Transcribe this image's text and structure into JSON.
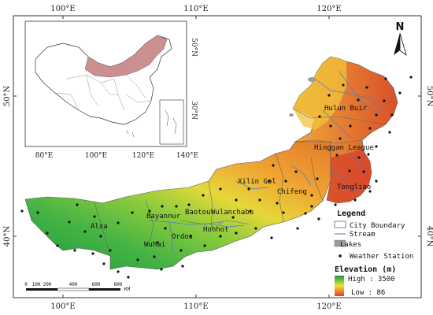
{
  "main_map": {
    "top_ticks": [
      "100°E",
      "110°E",
      "120°E"
    ],
    "bottom_ticks": [
      "100°E",
      "110°E",
      "120°E"
    ],
    "left_ticks": [
      "50°N",
      "40°N"
    ],
    "right_ticks": [
      "50°N",
      "40°N"
    ],
    "cities": [
      "Hulun Buir",
      "Hinggan League",
      "Xilin Gol",
      "Chifeng",
      "Tongliao",
      "Bayannur",
      "Baotou",
      "Wulanchabu",
      "Hohhot",
      "Alxa",
      "Ordos",
      "Wuhai"
    ]
  },
  "inset_map": {
    "top_ticks": [
      "80°E",
      "100°E",
      "120°E",
      "140°E"
    ],
    "bottom_ticks": [
      "80°E",
      "100°E",
      "120°E",
      "140°E"
    ],
    "right_ticks": [
      "50°N",
      "30°N"
    ],
    "highlight_color": "#c99090"
  },
  "north_arrow": {
    "label": "N"
  },
  "scale_bar": {
    "ticks": [
      "0",
      "100",
      "200",
      "400",
      "600",
      "800"
    ],
    "unit": "KM"
  },
  "legend": {
    "title": "Legend",
    "items": [
      {
        "label": "City Boundary",
        "symbol": "box-outline"
      },
      {
        "label": "Stream",
        "symbol": "line-blue"
      },
      {
        "label": "Lakes",
        "symbol": "box-gray"
      },
      {
        "label": "Weather Station",
        "symbol": "dot"
      }
    ],
    "elevation_title": "Elevation (m)",
    "high_label": "High : 3500",
    "low_label": "Low : 86",
    "ramp_colors": [
      "#1e9a3b",
      "#8ccc3c",
      "#f1e13a",
      "#f08a2a",
      "#d8402a"
    ]
  }
}
